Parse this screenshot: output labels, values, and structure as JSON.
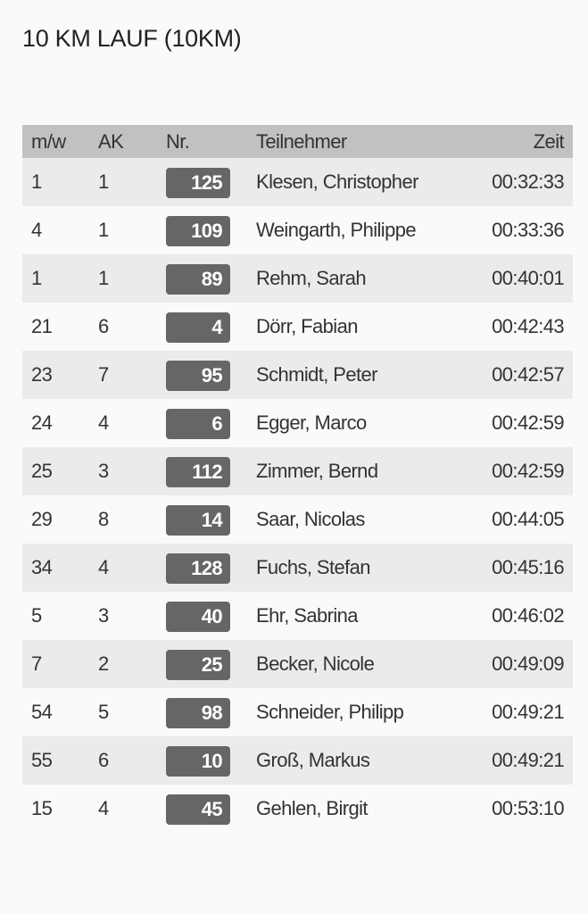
{
  "title": "10 KM LAUF (10KM)",
  "columns": {
    "mw": "m/w",
    "ak": "AK",
    "nr": "Nr.",
    "name": "Teilnehmer",
    "zeit": "Zeit"
  },
  "rows": [
    {
      "mw": "1",
      "ak": "1",
      "nr": "125",
      "name": "Klesen, Christopher",
      "zeit": "00:32:33"
    },
    {
      "mw": "4",
      "ak": "1",
      "nr": "109",
      "name": "Weingarth, Philippe",
      "zeit": "00:33:36"
    },
    {
      "mw": "1",
      "ak": "1",
      "nr": "89",
      "name": "Rehm, Sarah",
      "zeit": "00:40:01"
    },
    {
      "mw": "21",
      "ak": "6",
      "nr": "4",
      "name": "Dörr, Fabian",
      "zeit": "00:42:43"
    },
    {
      "mw": "23",
      "ak": "7",
      "nr": "95",
      "name": "Schmidt, Peter",
      "zeit": "00:42:57"
    },
    {
      "mw": "24",
      "ak": "4",
      "nr": "6",
      "name": "Egger, Marco",
      "zeit": "00:42:59"
    },
    {
      "mw": "25",
      "ak": "3",
      "nr": "112",
      "name": "Zimmer, Bernd",
      "zeit": "00:42:59"
    },
    {
      "mw": "29",
      "ak": "8",
      "nr": "14",
      "name": "Saar, Nicolas",
      "zeit": "00:44:05"
    },
    {
      "mw": "34",
      "ak": "4",
      "nr": "128",
      "name": "Fuchs, Stefan",
      "zeit": "00:45:16"
    },
    {
      "mw": "5",
      "ak": "3",
      "nr": "40",
      "name": "Ehr, Sabrina",
      "zeit": "00:46:02"
    },
    {
      "mw": "7",
      "ak": "2",
      "nr": "25",
      "name": "Becker, Nicole",
      "zeit": "00:49:09"
    },
    {
      "mw": "54",
      "ak": "5",
      "nr": "98",
      "name": "Schneider, Philipp",
      "zeit": "00:49:21"
    },
    {
      "mw": "55",
      "ak": "6",
      "nr": "10",
      "name": "Groß, Markus",
      "zeit": "00:49:21"
    },
    {
      "mw": "15",
      "ak": "4",
      "nr": "45",
      "name": "Gehlen, Birgit",
      "zeit": "00:53:10"
    }
  ]
}
